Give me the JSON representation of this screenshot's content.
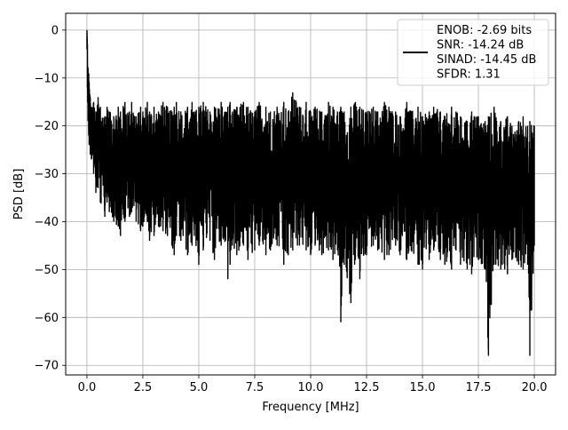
{
  "chart_data": {
    "type": "line",
    "title": "",
    "xlabel": "Frequency [MHz]",
    "ylabel": "PSD [dB]",
    "xlim": [
      -0.95,
      20.95
    ],
    "ylim": [
      -72,
      3.5
    ],
    "xticks": [
      0.0,
      2.5,
      5.0,
      7.5,
      10.0,
      12.5,
      15.0,
      17.5,
      20.0
    ],
    "xtick_labels": [
      "0.0",
      "2.5",
      "5.0",
      "7.5",
      "10.0",
      "12.5",
      "15.0",
      "17.5",
      "20.0"
    ],
    "yticks": [
      0,
      -10,
      -20,
      -30,
      -40,
      -50,
      -60,
      -70
    ],
    "ytick_labels": [
      "0",
      "−10",
      "−20",
      "−30",
      "−40",
      "−50",
      "−60",
      "−70"
    ],
    "grid": true,
    "legend_position": "top-right",
    "line_color": "#000000",
    "series": [
      {
        "name": "",
        "style": "dense noisy spectrum",
        "x": [
          0.0,
          0.02,
          0.05,
          0.08,
          0.1,
          0.15,
          0.2,
          0.3,
          0.4,
          0.5,
          0.6,
          0.8,
          0.9,
          1.0,
          1.2,
          1.4,
          1.5,
          1.7,
          1.9,
          2.0,
          2.2,
          2.4,
          2.5,
          2.7,
          2.8,
          3.0,
          3.2,
          3.4,
          3.6,
          3.8,
          3.9,
          4.0,
          4.2,
          4.5,
          4.7,
          4.8,
          5.0,
          5.2,
          5.5,
          5.7,
          6.0,
          6.2,
          6.3,
          6.4,
          6.5,
          6.7,
          7.0,
          7.2,
          7.5,
          7.7,
          8.0,
          8.2,
          8.5,
          8.8,
          9.0,
          9.2,
          9.5,
          9.8,
          10.0,
          10.2,
          10.5,
          10.8,
          11.0,
          11.2,
          11.35,
          11.5,
          11.8,
          12.0,
          12.2,
          12.5,
          12.8,
          13.0,
          13.3,
          13.5,
          13.8,
          14.0,
          14.3,
          14.5,
          14.8,
          15.0,
          15.3,
          15.5,
          15.8,
          16.0,
          16.3,
          16.5,
          16.7,
          17.0,
          17.2,
          17.5,
          17.8,
          17.95,
          18.2,
          18.5,
          18.8,
          19.0,
          19.3,
          19.5,
          19.7,
          19.8,
          20.0
        ],
        "upper": [
          0.0,
          -3,
          -8,
          -9,
          -11,
          -14,
          -16,
          -15,
          -17,
          -14,
          -16,
          -18,
          -16,
          -17,
          -18,
          -16,
          -17,
          -15,
          -17,
          -15,
          -18,
          -16,
          -17,
          -15,
          -17,
          -16,
          -17,
          -15,
          -16,
          -17,
          -16,
          -15,
          -17,
          -16,
          -15,
          -17,
          -16,
          -15,
          -17,
          -16,
          -15,
          -17,
          -16,
          -15,
          -17,
          -16,
          -15,
          -16,
          -17,
          -15,
          -16,
          -17,
          -16,
          -15,
          -17,
          -13,
          -16,
          -15,
          -17,
          -16,
          -17,
          -15,
          -16,
          -17,
          -16,
          -17,
          -16,
          -15,
          -16,
          -17,
          -16,
          -17,
          -15,
          -16,
          -17,
          -18,
          -15,
          -17,
          -16,
          -18,
          -17,
          -16,
          -17,
          -18,
          -16,
          -17,
          -18,
          -19,
          -17,
          -18,
          -19,
          -18,
          -16,
          -19,
          -18,
          -20,
          -19,
          -18,
          -20,
          -19,
          -20
        ],
        "lower": [
          -4,
          -12,
          -19,
          -22,
          -24,
          -26,
          -27,
          -30,
          -34,
          -33,
          -36,
          -39,
          -36,
          -38,
          -40,
          -41,
          -43,
          -40,
          -39,
          -38,
          -40,
          -42,
          -41,
          -40,
          -44,
          -43,
          -41,
          -42,
          -43,
          -45,
          -47,
          -43,
          -44,
          -47,
          -45,
          -43,
          -49,
          -46,
          -44,
          -48,
          -45,
          -44,
          -52,
          -49,
          -45,
          -47,
          -45,
          -48,
          -46,
          -45,
          -47,
          -46,
          -45,
          -49,
          -47,
          -46,
          -45,
          -46,
          -47,
          -45,
          -47,
          -46,
          -48,
          -46,
          -61,
          -49,
          -57,
          -48,
          -52,
          -47,
          -45,
          -46,
          -48,
          -47,
          -45,
          -47,
          -48,
          -46,
          -49,
          -50,
          -48,
          -46,
          -48,
          -49,
          -50,
          -46,
          -49,
          -50,
          -51,
          -48,
          -50,
          -68,
          -49,
          -50,
          -51,
          -48,
          -49,
          -50,
          -49,
          -68,
          -45
        ]
      }
    ],
    "legend": [
      {
        "label": "ENOB: -2.69 bits"
      },
      {
        "label": "SNR: -14.24 dB"
      },
      {
        "label": "SINAD: -14.45 dB"
      },
      {
        "label": "SFDR: 1.31"
      }
    ]
  }
}
